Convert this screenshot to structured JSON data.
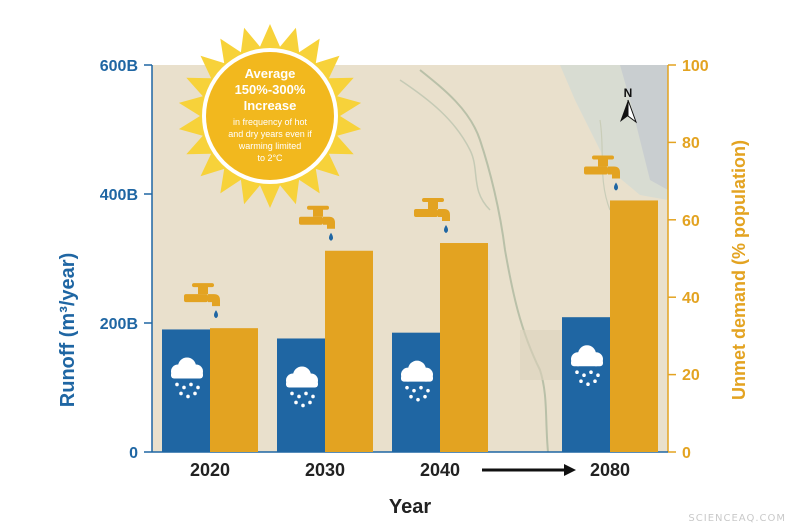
{
  "chart_data": {
    "type": "bar",
    "categories": [
      "2020",
      "2030",
      "2040",
      "2080"
    ],
    "series": [
      {
        "name": "Runoff",
        "axis": "left",
        "values": [
          190,
          176,
          185,
          209
        ],
        "color": "#1f66a3"
      },
      {
        "name": "Unmet demand",
        "axis": "right",
        "values": [
          32,
          52,
          54,
          65
        ],
        "color": "#e3a321"
      }
    ],
    "xlabel": "Year",
    "ylabel_left": "Runoff (m³/year)",
    "ylabel_right": "Unmet demand (% population)",
    "ylim_left": [
      0,
      600
    ],
    "yticks_left": [
      "0",
      "200B",
      "400B",
      "600B"
    ],
    "ylim_right": [
      0,
      100
    ],
    "yticks_right": [
      "0",
      "20",
      "40",
      "60",
      "80",
      "100"
    ],
    "grid": false,
    "annotation": {
      "line1": "Average",
      "line2": "150%-300%",
      "line3": "Increase",
      "sub1": "in frequency of hot",
      "sub2": "and dry years even if",
      "sub3": "warming limited",
      "sub4": "to 2°C"
    },
    "north_label": "N"
  },
  "icons": {
    "faucet": "faucet-icon",
    "cloud": "rain-cloud-icon",
    "sun": "sun-icon",
    "arrow": "timeline-arrow-icon",
    "north": "north-arrow-icon"
  },
  "watermark": "SCIENCEAQ.COM"
}
